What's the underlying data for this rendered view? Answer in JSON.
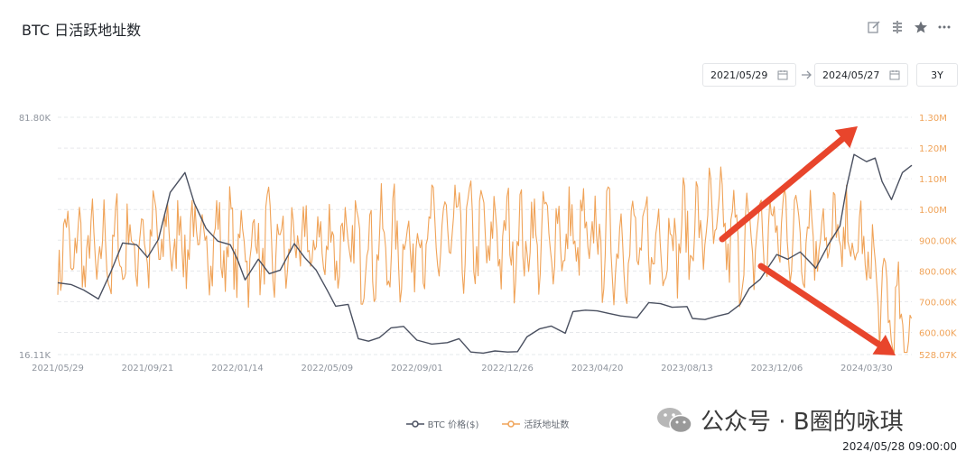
{
  "title": "BTC 日活跃地址数",
  "toolbar": {
    "icons": [
      "edit-icon",
      "compare-icon",
      "star-icon",
      "more-icon"
    ]
  },
  "date_range": {
    "start": "2021/05/29",
    "end": "2024/05/27",
    "range_button": "3Y"
  },
  "timestamp": "2024/05/28 09:00:00",
  "watermark": "公众号 · B圈的咏琪",
  "colors": {
    "btc": "#4a5060",
    "addresses": "#f0a358",
    "arrow": "#e8452c",
    "grid": "#e6e8eb",
    "right_axis": "#f0a358",
    "left_axis": "#8f959e"
  },
  "chart_data": {
    "type": "line",
    "x_ticks": [
      "2021/05/29",
      "2021/09/21",
      "2022/01/14",
      "2022/05/09",
      "2022/09/01",
      "2022/12/26",
      "2023/04/20",
      "2023/08/13",
      "2023/12/06",
      "2024/03/30"
    ],
    "y_left": {
      "min_label": "16.11K",
      "max_label": "81.80K",
      "min": 16110,
      "max": 81800
    },
    "y_right": {
      "ticks": [
        "1.30M",
        "1.20M",
        "1.10M",
        "1.00M",
        "900.00K",
        "800.00K",
        "700.00K",
        "600.00K",
        "528.07K"
      ],
      "min": 528070,
      "max": 1300000
    },
    "series": [
      {
        "name": "BTC 价格($)",
        "axis": "left",
        "x": [
          "2021/05/29",
          "2021/06/15",
          "2021/07/01",
          "2021/07/20",
          "2021/08/05",
          "2021/08/20",
          "2021/09/07",
          "2021/09/21",
          "2021/10/05",
          "2021/10/20",
          "2021/11/08",
          "2021/11/20",
          "2021/12/05",
          "2021/12/20",
          "2022/01/05",
          "2022/01/14",
          "2022/01/24",
          "2022/02/10",
          "2022/02/24",
          "2022/03/10",
          "2022/03/28",
          "2022/04/10",
          "2022/04/25",
          "2022/05/09",
          "2022/05/20",
          "2022/06/05",
          "2022/06/18",
          "2022/07/01",
          "2022/07/15",
          "2022/07/30",
          "2022/08/15",
          "2022/09/01",
          "2022/09/20",
          "2022/10/10",
          "2022/10/25",
          "2022/11/09",
          "2022/11/25",
          "2022/12/10",
          "2022/12/26",
          "2023/01/08",
          "2023/01/20",
          "2023/02/05",
          "2023/02/20",
          "2023/03/10",
          "2023/03/20",
          "2023/04/05",
          "2023/04/20",
          "2023/05/05",
          "2023/05/20",
          "2023/06/10",
          "2023/06/25",
          "2023/07/10",
          "2023/07/25",
          "2023/08/13",
          "2023/08/20",
          "2023/09/05",
          "2023/09/20",
          "2023/10/05",
          "2023/10/20",
          "2023/11/01",
          "2023/11/15",
          "2023/12/06",
          "2023/12/20",
          "2024/01/05",
          "2024/01/15",
          "2024/01/25",
          "2024/02/10",
          "2024/02/25",
          "2024/03/05",
          "2024/03/14",
          "2024/03/30",
          "2024/04/10",
          "2024/04/19",
          "2024/05/01",
          "2024/05/15",
          "2024/05/27"
        ],
        "values": [
          36000,
          35500,
          34000,
          31500,
          39000,
          47000,
          46500,
          43000,
          48000,
          61000,
          66500,
          58000,
          51000,
          47500,
          46500,
          42500,
          36800,
          42500,
          38500,
          39500,
          46800,
          43000,
          39500,
          34000,
          29500,
          30000,
          20500,
          19800,
          20800,
          23500,
          23900,
          20100,
          19000,
          19400,
          20500,
          16800,
          16500,
          17100,
          16800,
          16900,
          21000,
          23200,
          24000,
          22000,
          28000,
          28400,
          28200,
          27500,
          26800,
          26300,
          30500,
          30200,
          29200,
          29400,
          26100,
          25800,
          26700,
          27500,
          30000,
          34500,
          37000,
          43800,
          42500,
          44500,
          42300,
          40000,
          46500,
          51700,
          63000,
          71500,
          69500,
          70500,
          64000,
          59000,
          66500,
          68500
        ],
        "color": "#4a5060"
      },
      {
        "name": "活跃地址数",
        "axis": "right",
        "x": [
          "2021/05/29",
          "2021/07/20",
          "2021/09/21",
          "2021/11/20",
          "2022/01/14",
          "2022/03/10",
          "2022/05/09",
          "2022/07/01",
          "2022/09/01",
          "2022/10/25",
          "2022/12/26",
          "2023/02/20",
          "2023/04/20",
          "2023/06/10",
          "2023/08/13",
          "2023/09/20",
          "2023/10/20",
          "2023/12/06",
          "2024/01/25",
          "2024/03/14",
          "2024/03/30",
          "2024/04/19",
          "2024/05/01",
          "2024/05/27"
        ],
        "values": [
          880000,
          850000,
          900000,
          905000,
          880000,
          870000,
          890000,
          870000,
          890000,
          920000,
          900000,
          910000,
          895000,
          880000,
          920000,
          960000,
          870000,
          940000,
          930000,
          880000,
          860000,
          700000,
          660000,
          560000
        ],
        "color": "#f0a358"
      }
    ],
    "annotations": [
      "arrow-up-right",
      "arrow-down-right"
    ]
  },
  "legend": [
    {
      "label": "BTC 价格($)",
      "color": "#4a5060"
    },
    {
      "label": "活跃地址数",
      "color": "#f0a358"
    }
  ]
}
